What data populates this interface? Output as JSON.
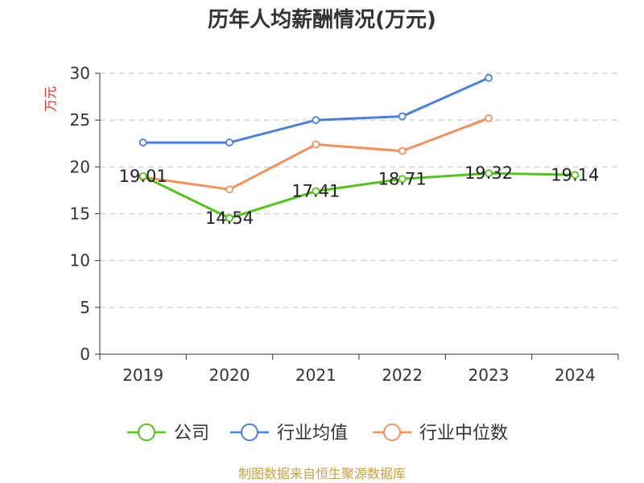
{
  "chart_data": {
    "type": "line",
    "title": "历年人均薪酬情况(万元)",
    "ylabel": "万元",
    "xlabel": "",
    "categories": [
      "2019",
      "2020",
      "2021",
      "2022",
      "2023",
      "2024"
    ],
    "ylim": [
      0,
      30
    ],
    "yticks": [
      0,
      5,
      10,
      15,
      20,
      25,
      30
    ],
    "grid": "horizontal-dashed",
    "legend_position": "bottom",
    "series": [
      {
        "name": "公司",
        "color": "#52c41a",
        "values": [
          19.01,
          14.54,
          17.41,
          18.71,
          19.32,
          19.14
        ],
        "labels": [
          "19.01",
          "14.54",
          "17.41",
          "18.71",
          "19.32",
          "19.14"
        ]
      },
      {
        "name": "行业均值",
        "color": "#4a7fdc",
        "values": [
          22.6,
          22.6,
          25.0,
          25.4,
          29.5,
          null
        ]
      },
      {
        "name": "行业中位数",
        "color": "#f4915b",
        "values": [
          18.9,
          17.6,
          22.4,
          21.7,
          25.2,
          null
        ]
      }
    ],
    "source": "制图数据来自恒生聚源数据库"
  },
  "colors": {
    "title": "#333333",
    "ylabel": "#e0302b",
    "axis": "#333333",
    "grid": "#cccccc",
    "source": "#c8a040"
  }
}
